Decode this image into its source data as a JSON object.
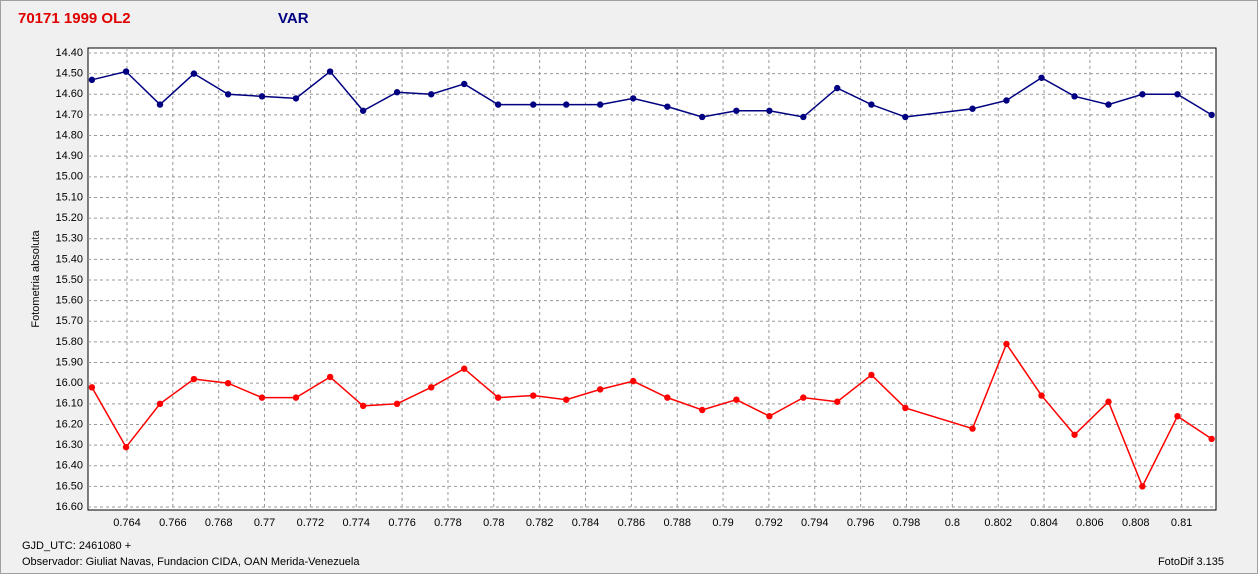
{
  "chart_data": {
    "type": "line",
    "title": "70171 1999 OL2",
    "subtitle": "VAR",
    "y_label": "Fotometria absoluta",
    "x_note": "GJD_UTC: 2461080 +",
    "observer": "Observador: Giuliat Navas, Fundacion CIDA, OAN  Merida-Venezuela",
    "software": "FotoDif 3.135",
    "y_inverted": true,
    "grid": true,
    "xlim": [
      0.7623,
      0.8115
    ],
    "ylim": [
      14.4,
      16.6
    ],
    "xticks": [
      0.764,
      0.766,
      0.768,
      0.77,
      0.772,
      0.774,
      0.776,
      0.778,
      0.78,
      0.782,
      0.784,
      0.786,
      0.788,
      0.79,
      0.792,
      0.794,
      0.796,
      0.798,
      0.8,
      0.802,
      0.804,
      0.806,
      0.808,
      0.81
    ],
    "yticks": [
      {
        "value": 14.4,
        "label": "14.40"
      },
      {
        "value": 14.5,
        "label": "14.50"
      },
      {
        "value": 14.6,
        "label": "14.60"
      },
      {
        "value": 14.7,
        "label": "14.70"
      },
      {
        "value": 14.8,
        "label": "14.80"
      },
      {
        "value": 14.9,
        "label": "14.90"
      },
      {
        "value": 15.0,
        "label": "15.00"
      },
      {
        "value": 15.1,
        "label": "15.10"
      },
      {
        "value": 15.2,
        "label": "15.20"
      },
      {
        "value": 15.3,
        "label": "15.30"
      },
      {
        "value": 15.4,
        "label": "15.40"
      },
      {
        "value": 15.5,
        "label": "15.50"
      },
      {
        "value": 15.6,
        "label": "15.60"
      },
      {
        "value": 15.7,
        "label": "15.70"
      },
      {
        "value": 15.8,
        "label": "15.80"
      },
      {
        "value": 15.9,
        "label": "15.90"
      },
      {
        "value": 16.0,
        "label": "16.00"
      },
      {
        "value": 16.1,
        "label": "16.10"
      },
      {
        "value": 16.2,
        "label": "16.20"
      },
      {
        "value": 16.3,
        "label": "16.30"
      },
      {
        "value": 16.4,
        "label": "16.40"
      },
      {
        "value": 16.5,
        "label": "16.50"
      },
      {
        "value": 16.6,
        "label": "16.60"
      }
    ],
    "x": [
      0.76247,
      0.76396,
      0.76544,
      0.76692,
      0.76841,
      0.76989,
      0.77137,
      0.77286,
      0.7743,
      0.77578,
      0.77727,
      0.77871,
      0.78019,
      0.78172,
      0.78316,
      0.78464,
      0.78608,
      0.78757,
      0.78909,
      0.79058,
      0.79202,
      0.7935,
      0.79498,
      0.79647,
      0.79795,
      0.80088,
      0.80236,
      0.80389,
      0.80533,
      0.80681,
      0.80829,
      0.80982,
      0.81131
    ],
    "series": [
      {
        "color": "#000080",
        "values": [
          14.53,
          14.49,
          14.65,
          14.5,
          14.6,
          14.61,
          14.62,
          14.49,
          14.68,
          14.59,
          14.6,
          14.55,
          14.65,
          14.65,
          14.65,
          14.65,
          14.62,
          14.66,
          14.71,
          14.68,
          14.68,
          14.71,
          14.57,
          14.65,
          14.71,
          14.67,
          14.63,
          14.52,
          14.61,
          14.65,
          14.6,
          14.6,
          14.7
        ]
      },
      {
        "color": "#ff0000",
        "values": [
          16.02,
          16.31,
          16.1,
          15.98,
          16.0,
          16.07,
          16.07,
          15.97,
          16.11,
          16.1,
          16.02,
          15.93,
          16.07,
          16.06,
          16.08,
          16.03,
          15.99,
          16.07,
          16.13,
          16.08,
          16.16,
          16.07,
          16.09,
          15.96,
          16.12,
          16.22,
          15.81,
          16.06,
          16.25,
          16.09,
          16.5,
          16.16,
          16.27
        ]
      }
    ]
  }
}
